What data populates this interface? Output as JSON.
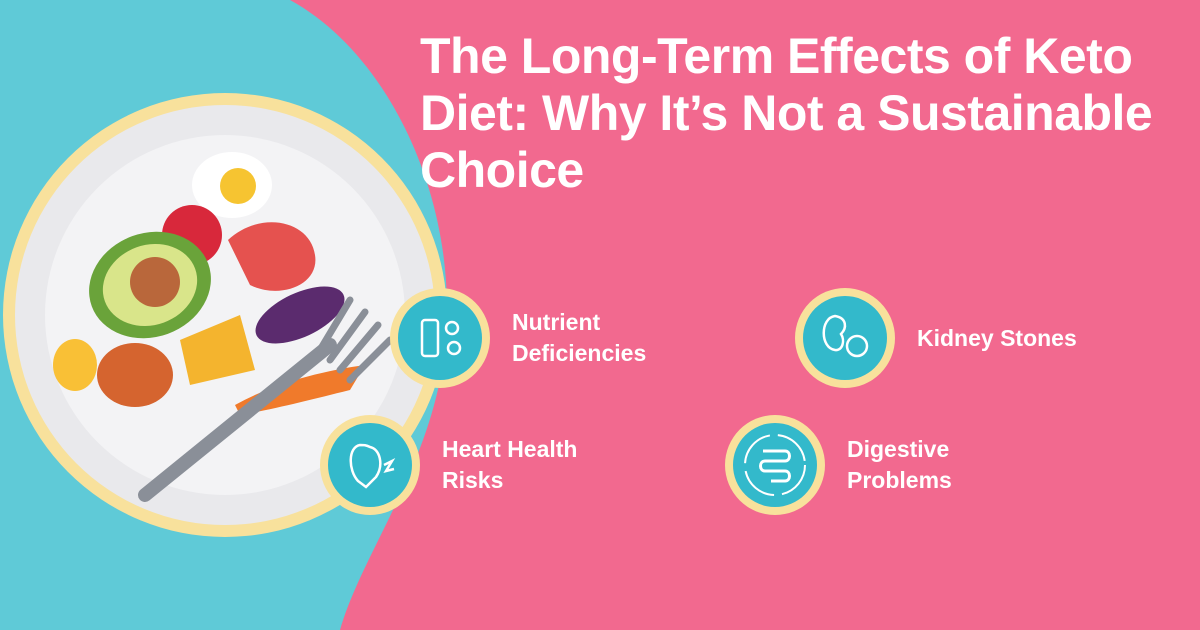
{
  "title": "The Long-Term Effects of Keto Diet: Why It’s Not a Sustainable Choice",
  "items": [
    {
      "label": "Nutrient Deficiencies"
    },
    {
      "label": "Kidney Stones"
    },
    {
      "label": "Heart Health Risks"
    },
    {
      "label": "Digestive Problems"
    }
  ]
}
